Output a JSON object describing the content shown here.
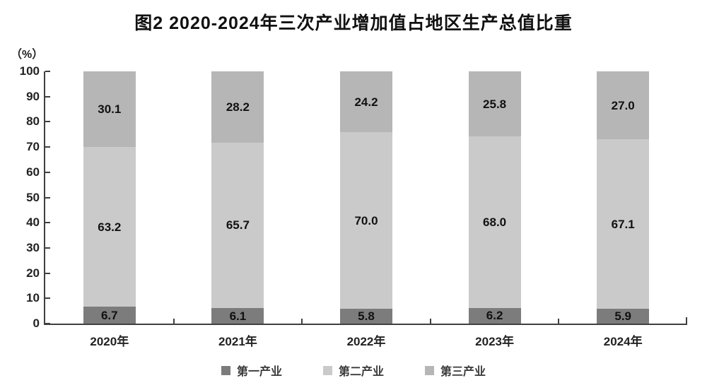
{
  "title": "图2  2020-2024年三次产业增加值占地区生产总值比重",
  "y_axis_unit": "（%）",
  "chart_data": {
    "type": "bar",
    "stacked": true,
    "title": "图2 2020-2024年三次产业增加值占地区生产总值比重",
    "categories": [
      "2020年",
      "2021年",
      "2022年",
      "2023年",
      "2024年"
    ],
    "series": [
      {
        "name": "第一产业",
        "color": "#7c7c7c",
        "values": [
          6.7,
          6.1,
          5.8,
          6.2,
          5.9
        ],
        "labels": [
          "6.7",
          "6.1",
          "5.8",
          "6.2",
          "5.9"
        ]
      },
      {
        "name": "第二产业",
        "color": "#cacaca",
        "values": [
          63.2,
          65.7,
          70.0,
          68.0,
          67.1
        ],
        "labels": [
          "63.2",
          "65.7",
          "70.0",
          "68.0",
          "67.1"
        ]
      },
      {
        "name": "第三产业",
        "color": "#b6b6b6",
        "values": [
          30.1,
          28.2,
          24.2,
          25.8,
          27.0
        ],
        "labels": [
          "30.1",
          "28.2",
          "24.2",
          "25.8",
          "27.0"
        ]
      }
    ],
    "ylabel": "（%）",
    "ylim": [
      0,
      100
    ],
    "yticks": [
      0,
      10,
      20,
      30,
      40,
      50,
      60,
      70,
      80,
      90,
      100
    ],
    "legend_position": "bottom",
    "grid": false,
    "axis_color": "#3f3f3f",
    "text_color": "#222222"
  }
}
